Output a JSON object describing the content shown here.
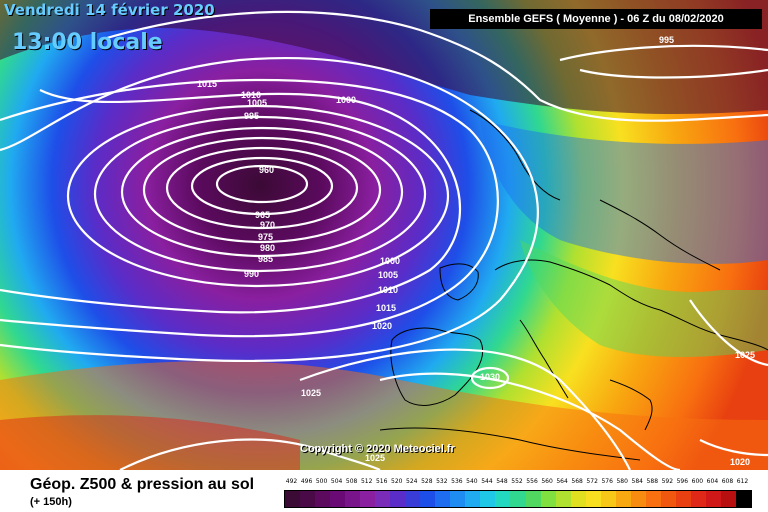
{
  "title": {
    "date": "Vendredi 14 février 2020",
    "time": "13:00 locale"
  },
  "header": "Ensemble GEFS  ( Moyenne )  -  06 Z du 08/02/2020",
  "copyright": "Copyright © 2020 Meteociel.fr",
  "footer": {
    "title": "Géop. Z500 & pression au sol",
    "subtitle": "(+ 150h)"
  },
  "legend": {
    "values": [
      "492",
      "496",
      "500",
      "504",
      "508",
      "512",
      "516",
      "520",
      "524",
      "528",
      "532",
      "536",
      "540",
      "544",
      "548",
      "552",
      "556",
      "560",
      "564",
      "568",
      "572",
      "576",
      "580",
      "584",
      "588",
      "592",
      "596",
      "600",
      "604",
      "608",
      "612"
    ],
    "colors": [
      "#3b0a35",
      "#4a0a48",
      "#5b0a5e",
      "#6a0a75",
      "#7a148a",
      "#8a1fa0",
      "#7a2cb8",
      "#5a2cc8",
      "#3a3cd8",
      "#1e4ee8",
      "#1e6cf0",
      "#1e8cf0",
      "#20aaf0",
      "#20c8e8",
      "#22d8c0",
      "#30d890",
      "#50d860",
      "#80e040",
      "#b0e030",
      "#e0e020",
      "#f8e020",
      "#f8c818",
      "#f8a810",
      "#f88c10",
      "#f87010",
      "#f05810",
      "#e84010",
      "#e02818",
      "#d01818",
      "#b81010",
      "#000000"
    ]
  },
  "isobars": [
    "1015",
    "1010",
    "1005",
    "1000",
    "995",
    "960",
    "965",
    "970",
    "975",
    "980",
    "985",
    "990",
    "1000",
    "1005",
    "1010",
    "1015",
    "1020",
    "1025",
    "1030",
    "1025",
    "995",
    "1025",
    "1020"
  ]
}
